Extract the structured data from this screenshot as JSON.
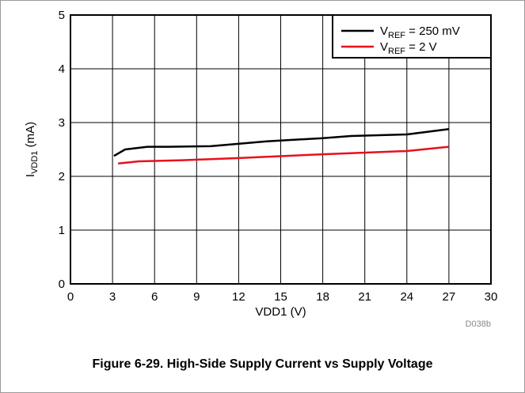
{
  "caption": "Figure 6-29. High-Side Supply Current vs Supply Voltage",
  "figure_code": "D038b",
  "chart_data": {
    "type": "line",
    "xlabel": "VDD1 (V)",
    "ylabel": {
      "main": "I",
      "sub": "VDD1",
      "unit": " (mA)"
    },
    "xlim": [
      0,
      30
    ],
    "ylim": [
      0,
      5
    ],
    "xticks": [
      0,
      3,
      6,
      9,
      12,
      15,
      18,
      21,
      24,
      27,
      30
    ],
    "yticks": [
      0,
      1,
      2,
      3,
      4,
      5
    ],
    "grid": true,
    "legend_position": "top-right",
    "series": [
      {
        "legend": {
          "main": "V",
          "sub": "REF",
          "rest": " = 250 mV"
        },
        "color": "#000000",
        "x": [
          3.1,
          3.9,
          5.5,
          7,
          10,
          14,
          18,
          20,
          24,
          27
        ],
        "y": [
          2.38,
          2.5,
          2.55,
          2.55,
          2.56,
          2.65,
          2.71,
          2.75,
          2.78,
          2.88
        ]
      },
      {
        "legend": {
          "main": "V",
          "sub": "REF",
          "rest": " = 2 V"
        },
        "color": "#e8101b",
        "x": [
          3.4,
          4.9,
          8,
          12,
          18,
          24,
          27
        ],
        "y": [
          2.24,
          2.28,
          2.3,
          2.34,
          2.41,
          2.47,
          2.55
        ]
      }
    ]
  }
}
